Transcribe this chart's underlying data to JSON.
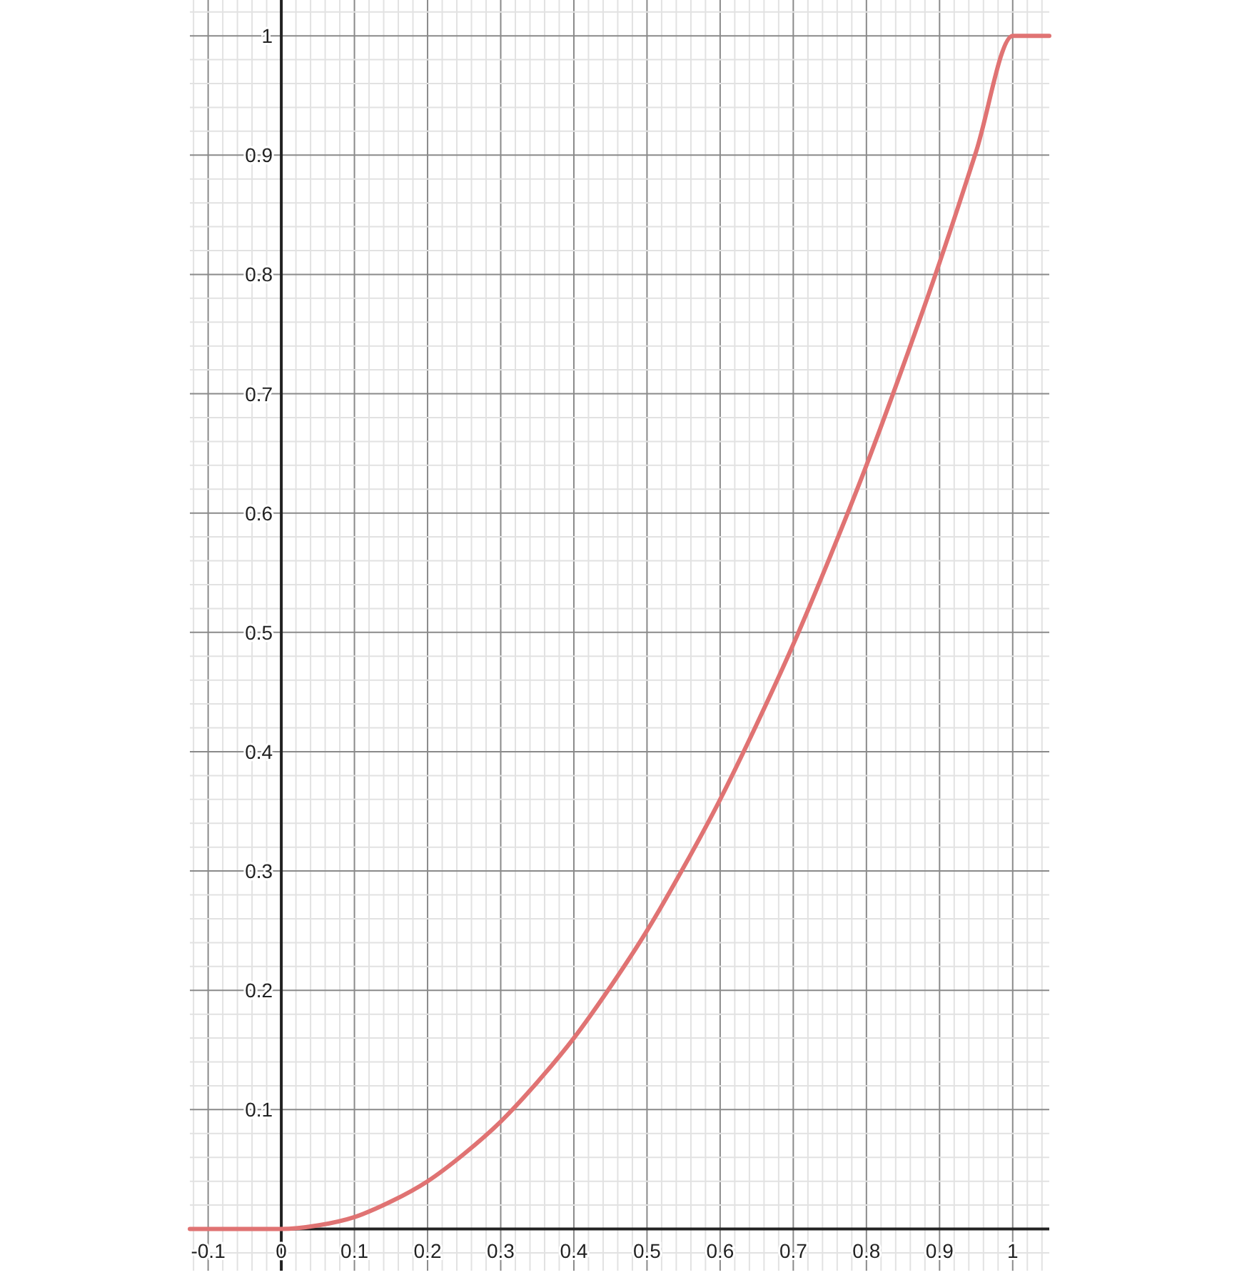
{
  "chart_data": {
    "type": "line",
    "x": [
      -0.125,
      0,
      0.05,
      0.1,
      0.15,
      0.2,
      0.25,
      0.3,
      0.35,
      0.4,
      0.45,
      0.5,
      0.55,
      0.6,
      0.65,
      0.7,
      0.75,
      0.8,
      0.85,
      0.9,
      0.95,
      1,
      1.05
    ],
    "series": [
      {
        "color": "#e07373",
        "values": [
          0,
          0,
          0.003,
          0.01,
          0.023,
          0.04,
          0.063,
          0.09,
          0.123,
          0.16,
          0.203,
          0.25,
          0.303,
          0.36,
          0.423,
          0.49,
          0.563,
          0.64,
          0.723,
          0.81,
          0.903,
          1,
          1
        ]
      }
    ],
    "xlim": [
      -0.125,
      1.05
    ],
    "ylim": [
      -0.035,
      1.03
    ],
    "xticks": [
      {
        "value": -0.12,
        "label": null
      },
      -0.1,
      {
        "value": -0.08,
        "label": null
      },
      {
        "value": -0.06,
        "label": null
      },
      {
        "value": -0.04,
        "label": null
      },
      {
        "value": -0.02,
        "label": null
      },
      0,
      {
        "value": 0.02,
        "label": null
      },
      {
        "value": 0.04,
        "label": null
      },
      {
        "value": 0.06,
        "label": null
      },
      {
        "value": 0.08,
        "label": null
      },
      0.1,
      {
        "value": 0.12,
        "label": null
      },
      {
        "value": 0.14,
        "label": null
      },
      {
        "value": 0.16,
        "label": null
      },
      {
        "value": 0.18,
        "label": null
      },
      0.2,
      {
        "value": 0.22,
        "label": null
      },
      {
        "value": 0.24,
        "label": null
      },
      {
        "value": 0.26,
        "label": null
      },
      {
        "value": 0.28,
        "label": null
      },
      0.3,
      {
        "value": 0.32,
        "label": null
      },
      {
        "value": 0.34,
        "label": null
      },
      {
        "value": 0.36,
        "label": null
      },
      {
        "value": 0.38,
        "label": null
      },
      0.4,
      {
        "value": 0.42,
        "label": null
      },
      {
        "value": 0.44,
        "label": null
      },
      {
        "value": 0.46,
        "label": null
      },
      {
        "value": 0.48,
        "label": null
      },
      0.5,
      {
        "value": 0.52,
        "label": null
      },
      {
        "value": 0.54,
        "label": null
      },
      {
        "value": 0.56,
        "label": null
      },
      {
        "value": 0.58,
        "label": null
      },
      0.6,
      {
        "value": 0.62,
        "label": null
      },
      {
        "value": 0.64,
        "label": null
      },
      {
        "value": 0.66,
        "label": null
      },
      {
        "value": 0.68,
        "label": null
      },
      0.7,
      {
        "value": 0.72,
        "label": null
      },
      {
        "value": 0.74,
        "label": null
      },
      {
        "value": 0.76,
        "label": null
      },
      {
        "value": 0.78,
        "label": null
      },
      0.8,
      {
        "value": 0.82,
        "label": null
      },
      {
        "value": 0.84,
        "label": null
      },
      {
        "value": 0.86,
        "label": null
      },
      {
        "value": 0.88,
        "label": null
      },
      0.9,
      {
        "value": 0.92,
        "label": null
      },
      {
        "value": 0.94,
        "label": null
      },
      {
        "value": 0.96,
        "label": null
      },
      {
        "value": 0.98,
        "label": null
      },
      1,
      {
        "value": 1.02,
        "label": null
      },
      {
        "value": 1.04,
        "label": null
      }
    ],
    "yticks": [
      {
        "value": -0.02,
        "label": null
      },
      {
        "value": 0.02,
        "label": null
      },
      {
        "value": 0.04,
        "label": null
      },
      {
        "value": 0.06,
        "label": null
      },
      {
        "value": 0.08,
        "label": null
      },
      0.1,
      {
        "value": 0.12,
        "label": null
      },
      {
        "value": 0.14,
        "label": null
      },
      {
        "value": 0.16,
        "label": null
      },
      {
        "value": 0.18,
        "label": null
      },
      0.2,
      {
        "value": 0.22,
        "label": null
      },
      {
        "value": 0.24,
        "label": null
      },
      {
        "value": 0.26,
        "label": null
      },
      {
        "value": 0.28,
        "label": null
      },
      0.3,
      {
        "value": 0.32,
        "label": null
      },
      {
        "value": 0.34,
        "label": null
      },
      {
        "value": 0.36,
        "label": null
      },
      {
        "value": 0.38,
        "label": null
      },
      0.4,
      {
        "value": 0.42,
        "label": null
      },
      {
        "value": 0.44,
        "label": null
      },
      {
        "value": 0.46,
        "label": null
      },
      {
        "value": 0.48,
        "label": null
      },
      0.5,
      {
        "value": 0.52,
        "label": null
      },
      {
        "value": 0.54,
        "label": null
      },
      {
        "value": 0.56,
        "label": null
      },
      {
        "value": 0.58,
        "label": null
      },
      0.6,
      {
        "value": 0.62,
        "label": null
      },
      {
        "value": 0.64,
        "label": null
      },
      {
        "value": 0.66,
        "label": null
      },
      {
        "value": 0.68,
        "label": null
      },
      0.7,
      {
        "value": 0.72,
        "label": null
      },
      {
        "value": 0.74,
        "label": null
      },
      {
        "value": 0.76,
        "label": null
      },
      {
        "value": 0.78,
        "label": null
      },
      0.8,
      {
        "value": 0.82,
        "label": null
      },
      {
        "value": 0.84,
        "label": null
      },
      {
        "value": 0.86,
        "label": null
      },
      {
        "value": 0.88,
        "label": null
      },
      0.9,
      {
        "value": 0.92,
        "label": null
      },
      {
        "value": 0.94,
        "label": null
      },
      {
        "value": 0.96,
        "label": null
      },
      {
        "value": 0.98,
        "label": null
      },
      1,
      {
        "value": 1.02,
        "label": null
      }
    ],
    "grid": true,
    "line_style": "solid"
  }
}
